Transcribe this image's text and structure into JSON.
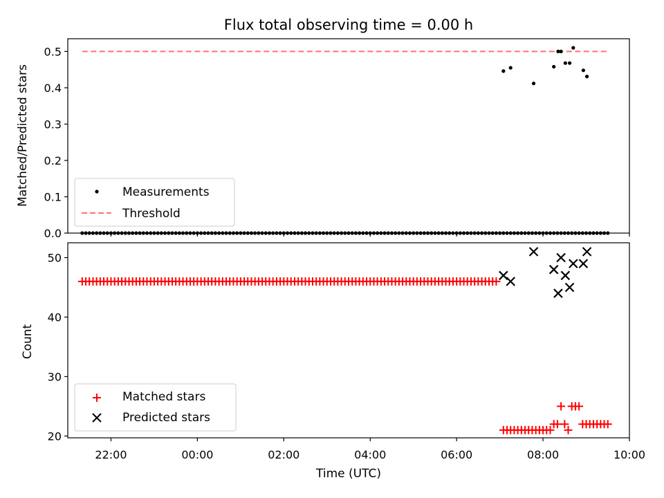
{
  "chart_data": [
    {
      "type": "scatter",
      "title": "Flux total observing time = 0.00 h",
      "xlabel": "",
      "ylabel": "Matched/Predicted stars",
      "ylim": [
        0.0,
        0.535
      ],
      "yticks": [
        "0.0",
        "0.1",
        "0.2",
        "0.3",
        "0.4",
        "0.5"
      ],
      "xlim": [
        "21:00",
        "10:00"
      ],
      "xticks": [
        "22:00",
        "00:00",
        "02:00",
        "04:00",
        "06:00",
        "08:00",
        "10:00"
      ],
      "grid": false,
      "legend": "lower-left",
      "series": [
        {
          "name": "Measurements",
          "marker": "dot",
          "color": "#000000",
          "points": [
            {
              "x": "07:05",
              "y": 0.446
            },
            {
              "x": "07:15",
              "y": 0.455
            },
            {
              "x": "07:47",
              "y": 0.412
            },
            {
              "x": "08:15",
              "y": 0.458
            },
            {
              "x": "08:21",
              "y": 0.5
            },
            {
              "x": "08:25",
              "y": 0.5
            },
            {
              "x": "08:31",
              "y": 0.468
            },
            {
              "x": "08:37",
              "y": 0.468
            },
            {
              "x": "08:42",
              "y": 0.51
            },
            {
              "x": "08:56",
              "y": 0.448
            },
            {
              "x": "09:01",
              "y": 0.431
            }
          ],
          "zero_points_from": "21:20",
          "zero_points_to": "09:30",
          "zero_points_step_min": 5,
          "zero_value": 0.0
        },
        {
          "name": "Threshold",
          "style": "dashed",
          "color": "#ff7070",
          "from": "21:20",
          "to": "09:30",
          "value": 0.5
        }
      ]
    },
    {
      "type": "scatter",
      "title": "",
      "xlabel": "Time (UTC)",
      "ylabel": "Count",
      "ylim": [
        19.7,
        52.5
      ],
      "yticks": [
        "20",
        "30",
        "40",
        "50"
      ],
      "xlim": [
        "21:00",
        "10:00"
      ],
      "xticks": [
        "22:00",
        "00:00",
        "02:00",
        "04:00",
        "06:00",
        "08:00",
        "10:00"
      ],
      "grid": false,
      "legend": "lower-left",
      "series": [
        {
          "name": "Matched stars",
          "marker": "plus",
          "color": "#ff0000",
          "constant_run": {
            "from": "21:20",
            "to": "06:55",
            "step_min": 5,
            "value": 46
          },
          "points": [
            {
              "x": "07:05",
              "y": 21
            },
            {
              "x": "07:10",
              "y": 21
            },
            {
              "x": "07:15",
              "y": 21
            },
            {
              "x": "07:20",
              "y": 21
            },
            {
              "x": "07:25",
              "y": 21
            },
            {
              "x": "07:30",
              "y": 21
            },
            {
              "x": "07:35",
              "y": 21
            },
            {
              "x": "07:40",
              "y": 21
            },
            {
              "x": "07:45",
              "y": 21
            },
            {
              "x": "07:50",
              "y": 21
            },
            {
              "x": "07:55",
              "y": 21
            },
            {
              "x": "08:00",
              "y": 21
            },
            {
              "x": "08:05",
              "y": 21
            },
            {
              "x": "08:10",
              "y": 21
            },
            {
              "x": "08:15",
              "y": 22
            },
            {
              "x": "08:20",
              "y": 22
            },
            {
              "x": "08:25",
              "y": 25
            },
            {
              "x": "08:30",
              "y": 22
            },
            {
              "x": "08:35",
              "y": 21
            },
            {
              "x": "08:40",
              "y": 25
            },
            {
              "x": "08:45",
              "y": 25
            },
            {
              "x": "08:50",
              "y": 25
            },
            {
              "x": "08:55",
              "y": 22
            },
            {
              "x": "09:00",
              "y": 22
            },
            {
              "x": "09:05",
              "y": 22
            },
            {
              "x": "09:10",
              "y": 22
            },
            {
              "x": "09:15",
              "y": 22
            },
            {
              "x": "09:20",
              "y": 22
            },
            {
              "x": "09:25",
              "y": 22
            },
            {
              "x": "09:30",
              "y": 22
            }
          ]
        },
        {
          "name": "Predicted stars",
          "marker": "x",
          "color": "#000000",
          "points": [
            {
              "x": "07:05",
              "y": 47
            },
            {
              "x": "07:15",
              "y": 46
            },
            {
              "x": "07:47",
              "y": 51
            },
            {
              "x": "08:15",
              "y": 48
            },
            {
              "x": "08:21",
              "y": 44
            },
            {
              "x": "08:25",
              "y": 50
            },
            {
              "x": "08:31",
              "y": 47
            },
            {
              "x": "08:37",
              "y": 45
            },
            {
              "x": "08:42",
              "y": 49
            },
            {
              "x": "08:56",
              "y": 49
            },
            {
              "x": "09:01",
              "y": 51
            }
          ]
        }
      ]
    }
  ]
}
